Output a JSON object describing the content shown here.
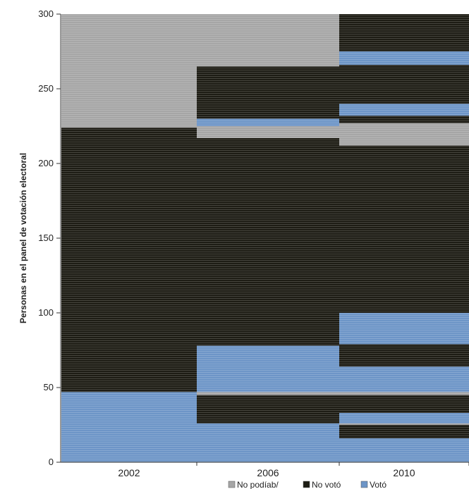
{
  "chart_data": {
    "type": "bar",
    "stacked": true,
    "ylabel": "Personas en el panel de votación electoral",
    "ylim": [
      0,
      300
    ],
    "yticks": [
      0,
      50,
      100,
      150,
      200,
      250,
      300
    ],
    "categories": [
      "2002",
      "2006",
      "2010"
    ],
    "legend": {
      "position": "bottom",
      "entries": [
        {
          "key": "nopod",
          "label": "No podíab/",
          "color": "#a6a6a6"
        },
        {
          "key": "novoto",
          "label": "No votó",
          "color": "#1d1c14"
        },
        {
          "key": "voto",
          "label": "Votó",
          "color": "#6d95c7"
        }
      ]
    },
    "columns": [
      {
        "category": "2002",
        "segments": [
          {
            "status": "voto",
            "from": 0,
            "to": 47
          },
          {
            "status": "novoto",
            "from": 47,
            "to": 224
          },
          {
            "status": "nopod",
            "from": 224,
            "to": 300
          }
        ]
      },
      {
        "category": "2006",
        "segments": [
          {
            "status": "voto",
            "from": 0,
            "to": 26
          },
          {
            "status": "novoto",
            "from": 26,
            "to": 45
          },
          {
            "status": "nopod",
            "from": 45,
            "to": 47
          },
          {
            "status": "voto",
            "from": 47,
            "to": 78
          },
          {
            "status": "novoto",
            "from": 78,
            "to": 217
          },
          {
            "status": "nopod",
            "from": 217,
            "to": 225
          },
          {
            "status": "voto",
            "from": 225,
            "to": 230
          },
          {
            "status": "novoto",
            "from": 230,
            "to": 265
          },
          {
            "status": "nopod",
            "from": 265,
            "to": 300
          }
        ]
      },
      {
        "category": "2010",
        "segments": [
          {
            "status": "voto",
            "from": 0,
            "to": 16
          },
          {
            "status": "novoto",
            "from": 16,
            "to": 25
          },
          {
            "status": "nopod",
            "from": 25,
            "to": 26
          },
          {
            "status": "voto",
            "from": 26,
            "to": 33
          },
          {
            "status": "novoto",
            "from": 33,
            "to": 45
          },
          {
            "status": "nopod",
            "from": 45,
            "to": 47
          },
          {
            "status": "voto",
            "from": 47,
            "to": 64
          },
          {
            "status": "novoto",
            "from": 64,
            "to": 79
          },
          {
            "status": "voto",
            "from": 79,
            "to": 100
          },
          {
            "status": "novoto",
            "from": 100,
            "to": 212
          },
          {
            "status": "nopod",
            "from": 212,
            "to": 227
          },
          {
            "status": "novoto",
            "from": 227,
            "to": 232
          },
          {
            "status": "voto",
            "from": 232,
            "to": 240
          },
          {
            "status": "novoto",
            "from": 240,
            "to": 266
          },
          {
            "status": "voto",
            "from": 266,
            "to": 275
          },
          {
            "status": "novoto",
            "from": 275,
            "to": 300
          }
        ]
      }
    ]
  }
}
